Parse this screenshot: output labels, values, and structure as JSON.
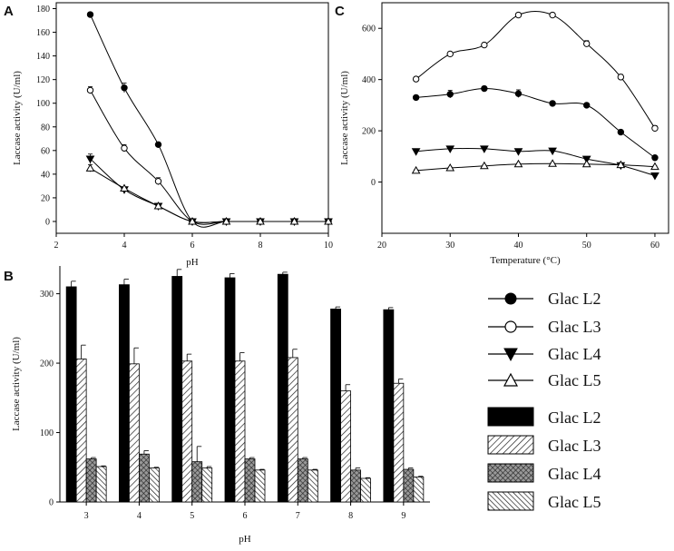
{
  "figure": {
    "panel_labels": [
      "A",
      "B",
      "C"
    ],
    "legend_line": [
      "Glac L2",
      "Glac L3",
      "Glac L4",
      "Glac L5"
    ],
    "legend_bar": [
      "Glac L2",
      "Glac L3",
      "Glac L4",
      "Glac L5"
    ]
  },
  "chart_data": [
    {
      "panel": "A",
      "type": "line",
      "xlabel": "pH",
      "ylabel": "Laccase activity (U/ml)",
      "xlim": [
        2,
        10
      ],
      "ylim": [
        -10,
        185
      ],
      "xticks": [
        2,
        4,
        6,
        8,
        10
      ],
      "yticks": [
        0,
        20,
        40,
        60,
        80,
        100,
        120,
        140,
        160,
        180
      ],
      "series": [
        {
          "name": "Glac L2",
          "marker": "circle-filled",
          "x": [
            3,
            4,
            5,
            6,
            7,
            8,
            9,
            10
          ],
          "values": [
            175,
            113,
            65,
            0,
            0,
            0,
            0,
            0
          ],
          "errors": [
            2,
            4,
            2,
            0,
            0,
            0,
            0,
            0
          ]
        },
        {
          "name": "Glac L3",
          "marker": "circle-open",
          "x": [
            3,
            4,
            5,
            6,
            7,
            8,
            9,
            10
          ],
          "values": [
            111,
            62,
            34,
            0,
            0,
            0,
            0,
            0
          ],
          "errors": [
            3,
            3,
            3,
            0,
            0,
            0,
            0,
            0
          ]
        },
        {
          "name": "Glac L4",
          "marker": "triangle-down-filled",
          "x": [
            3,
            4,
            5,
            6,
            7,
            8,
            9,
            10
          ],
          "values": [
            53,
            27,
            13,
            0,
            0,
            0,
            0,
            0
          ],
          "errors": [
            4,
            1,
            1,
            0,
            0,
            0,
            0,
            0
          ]
        },
        {
          "name": "Glac L5",
          "marker": "triangle-up-open",
          "x": [
            3,
            4,
            5,
            6,
            7,
            8,
            9,
            10
          ],
          "values": [
            45,
            28,
            13,
            0,
            0,
            0,
            0,
            0
          ],
          "errors": [
            3,
            1,
            1,
            0,
            0,
            0,
            0,
            0
          ]
        }
      ]
    },
    {
      "panel": "B",
      "type": "bar",
      "xlabel": "pH",
      "ylabel": "Laccase activity (U/ml)",
      "categories": [
        "3",
        "4",
        "5",
        "6",
        "7",
        "8",
        "9"
      ],
      "ylim": [
        0,
        340
      ],
      "yticks": [
        0,
        100,
        200,
        300
      ],
      "series": [
        {
          "name": "Glac L2",
          "fill": "solid",
          "values": [
            310,
            313,
            325,
            323,
            328,
            278,
            277
          ],
          "errors": [
            8,
            8,
            10,
            6,
            3,
            3,
            3
          ]
        },
        {
          "name": "Glac L3",
          "fill": "hatch-diag",
          "values": [
            206,
            199,
            203,
            203,
            208,
            160,
            171
          ],
          "errors": [
            20,
            23,
            10,
            12,
            12,
            9,
            6
          ]
        },
        {
          "name": "Glac L4",
          "fill": "crosshatch",
          "values": [
            62,
            69,
            58,
            62,
            62,
            46,
            47
          ],
          "errors": [
            2,
            5,
            22,
            2,
            2,
            3,
            2
          ]
        },
        {
          "name": "Glac L5",
          "fill": "hatch-back",
          "values": [
            51,
            49,
            49,
            46,
            46,
            34,
            36
          ],
          "errors": [
            1,
            1,
            2,
            1,
            1,
            1,
            1
          ]
        }
      ]
    },
    {
      "panel": "C",
      "type": "line",
      "xlabel": "Temperature (°C)",
      "ylabel": "Laccase activity (U/ml)",
      "xlim": [
        20,
        62
      ],
      "ylim": [
        -200,
        700
      ],
      "xticks": [
        20,
        30,
        40,
        50,
        60
      ],
      "yticks": [
        0,
        200,
        400,
        600
      ],
      "series": [
        {
          "name": "Glac L2",
          "marker": "circle-filled",
          "x": [
            25,
            30,
            35,
            40,
            45,
            50,
            55,
            60
          ],
          "values": [
            330,
            343,
            365,
            345,
            307,
            300,
            195,
            95
          ],
          "errors": [
            5,
            15,
            5,
            15,
            5,
            5,
            5,
            5
          ]
        },
        {
          "name": "Glac L3",
          "marker": "circle-open",
          "x": [
            25,
            30,
            35,
            40,
            45,
            50,
            55,
            60
          ],
          "values": [
            402,
            500,
            535,
            652,
            652,
            540,
            410,
            210
          ],
          "errors": [
            8,
            8,
            8,
            5,
            5,
            12,
            10,
            10
          ]
        },
        {
          "name": "Glac L4",
          "marker": "triangle-down-filled",
          "x": [
            25,
            30,
            35,
            40,
            45,
            50,
            55,
            60
          ],
          "values": [
            120,
            130,
            130,
            120,
            122,
            90,
            65,
            25
          ],
          "errors": [
            3,
            3,
            3,
            3,
            3,
            3,
            3,
            3
          ]
        },
        {
          "name": "Glac L5",
          "marker": "triangle-up-open",
          "x": [
            25,
            30,
            35,
            40,
            45,
            50,
            55,
            60
          ],
          "values": [
            45,
            55,
            63,
            70,
            72,
            70,
            67,
            60
          ],
          "errors": [
            3,
            3,
            3,
            3,
            3,
            3,
            3,
            3
          ]
        }
      ]
    }
  ]
}
